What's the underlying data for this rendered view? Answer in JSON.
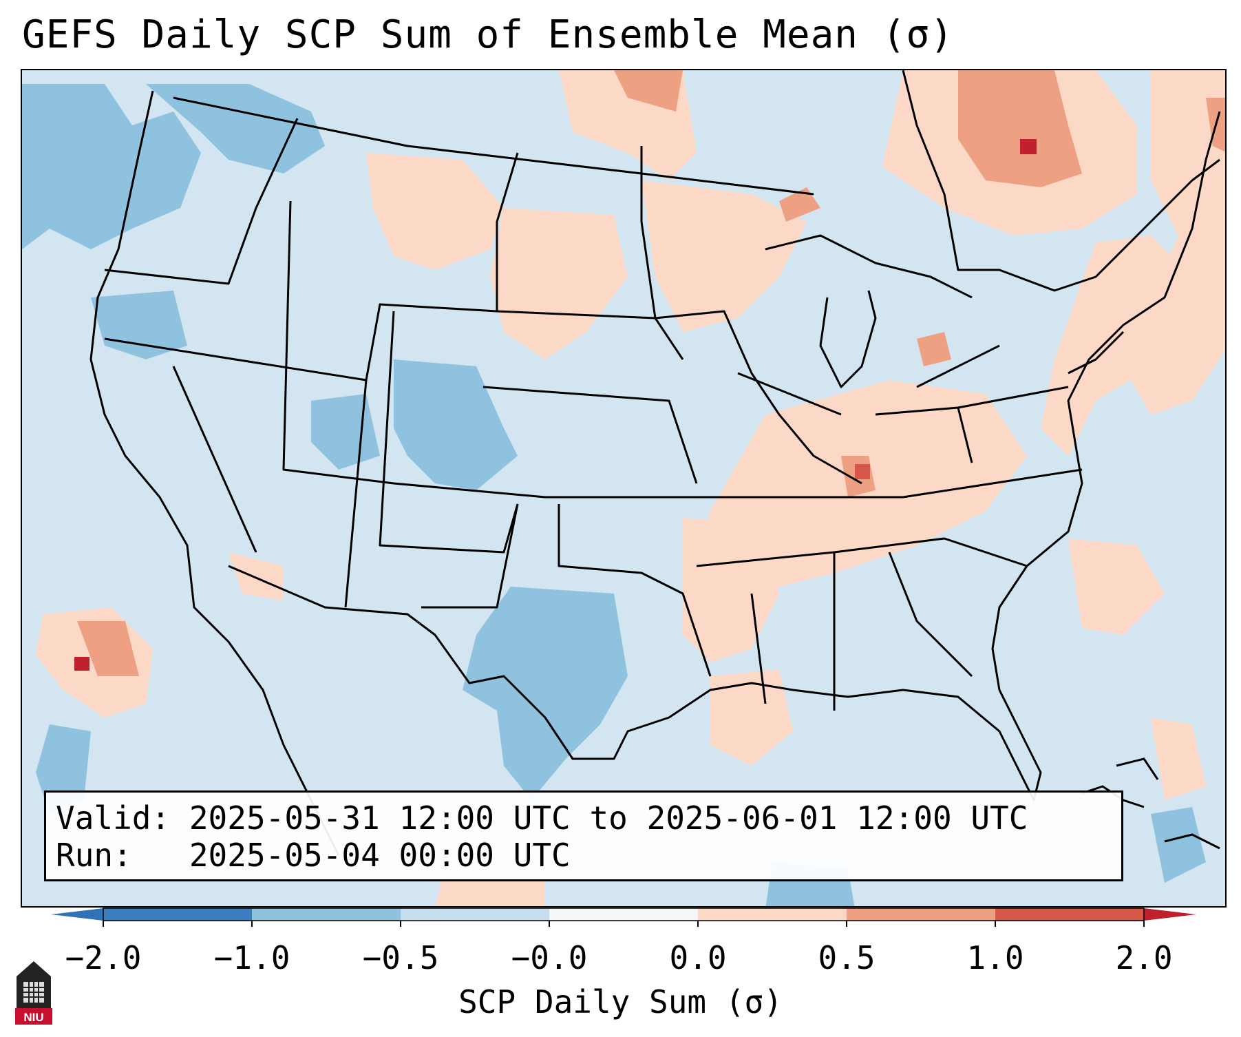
{
  "title": "GEFS Daily SCP Sum of Ensemble Mean (σ)",
  "info": {
    "valid_line": "Valid: 2025-05-31 12:00 UTC to 2025-06-01 12:00 UTC",
    "run_line": "Run:   2025-05-04 00:00 UTC"
  },
  "colorbar": {
    "label": "SCP Daily Sum (σ)",
    "ticks": [
      "−2.0",
      "−1.0",
      "−0.5",
      "−0.0",
      "0.0",
      "0.5",
      "1.0",
      "2.0"
    ],
    "colors": [
      "#3b7fbf",
      "#8fc2de",
      "#c5def0",
      "#f5f8fb",
      "#fbd9c6",
      "#eea083",
      "#d4574a"
    ],
    "extend_low_color": "#2f72b5",
    "extend_high_color": "#c0202e"
  },
  "map": {
    "background_color": "#d2e5f0",
    "boundary_color": "#000000"
  },
  "logo": {
    "text": "NIU",
    "color": "#c8102e"
  }
}
